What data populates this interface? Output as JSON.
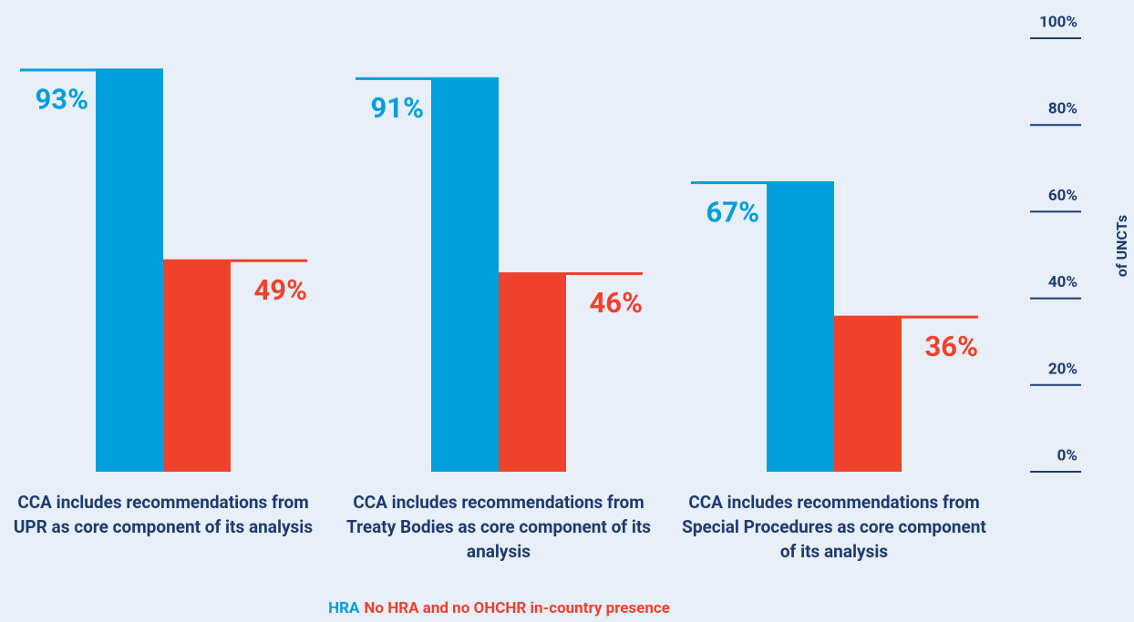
{
  "chart_data": {
    "type": "bar",
    "categories": [
      "CCA includes recommendations from UPR as core component of its analysis",
      "CCA includes recommendations from Treaty Bodies as core component of its analysis",
      "CCA includes recommendations from Special Procedures as core component of its analysis"
    ],
    "series": [
      {
        "name": "HRA",
        "color": "#009edb",
        "values": [
          93,
          91,
          67
        ],
        "value_labels": [
          "93%",
          "91%",
          "67%"
        ]
      },
      {
        "name": "No HRA and no OHCHR in-country presence",
        "color": "#ef412b",
        "values": [
          49,
          46,
          36
        ],
        "value_labels": [
          "49%",
          "46%",
          "36%"
        ]
      }
    ],
    "y_axis_label": "of UNCTs",
    "ylim": [
      0,
      100
    ],
    "yticks": [
      {
        "value": 0,
        "label": "0%"
      },
      {
        "value": 20,
        "label": "20%"
      },
      {
        "value": 40,
        "label": "40%"
      },
      {
        "value": 60,
        "label": "60%"
      },
      {
        "value": 80,
        "label": "80%"
      },
      {
        "value": 100,
        "label": "100%"
      }
    ],
    "y_axis_side": "right"
  }
}
